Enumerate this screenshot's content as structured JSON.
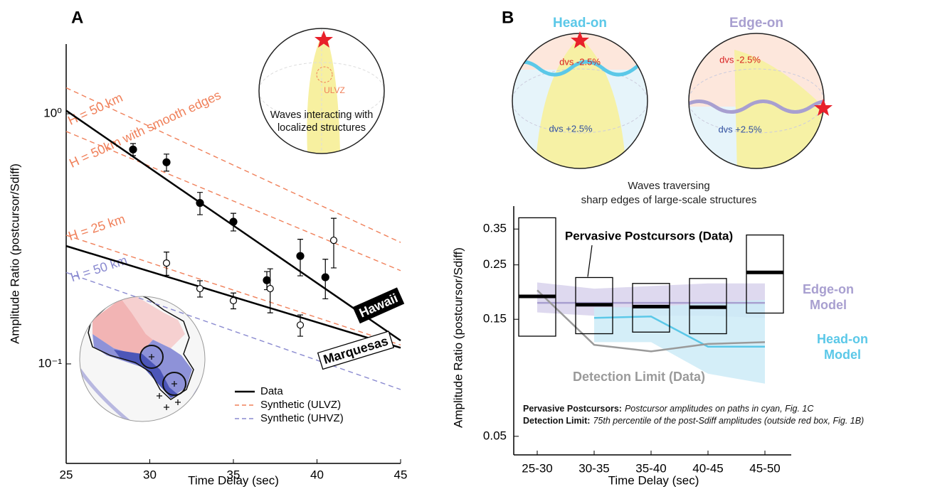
{
  "chart_data": [
    {
      "type": "scatter",
      "panel_label": "A",
      "xlabel": "Time Delay (sec)",
      "ylabel": "Amplitude Ratio (postcursor/Sdiff)",
      "xlim": [
        25,
        45
      ],
      "ylim": [
        0.04,
        1.9
      ],
      "log_y": true,
      "xticks": [
        25,
        30,
        35,
        40,
        45
      ],
      "yticks": [
        {
          "value": 1,
          "label": "10⁰"
        },
        {
          "value": 0.1,
          "label": "10⁻¹"
        }
      ],
      "series": [
        {
          "name": "Hawaii",
          "color": "#000000",
          "marker": "filled",
          "x": [
            29,
            31,
            33,
            35,
            37,
            39,
            40.5
          ],
          "values": [
            0.72,
            0.64,
            0.44,
            0.37,
            0.216,
            0.27,
            0.222
          ],
          "errors": [
            0.04,
            0.05,
            0.045,
            0.03,
            0.018,
            0.045,
            0.04
          ],
          "fit_values": [
            1.03,
            0.124
          ]
        },
        {
          "name": "Marquesas",
          "color": "#000000",
          "marker": "open",
          "x": [
            31,
            33,
            35,
            37.2,
            39,
            41
          ],
          "values": [
            0.253,
            0.2,
            0.179,
            0.2,
            0.143,
            0.312
          ],
          "errors": [
            0.027,
            0.015,
            0.013,
            0.04,
            0.014,
            0.07
          ],
          "fit_values": [
            0.296,
            0.116
          ]
        }
      ],
      "fit_x": [
        25,
        45
      ],
      "model_lines": [
        {
          "label": "H = 50 km",
          "color": "#f0805a",
          "values": [
            1.27,
            0.306
          ]
        },
        {
          "label": "H = 50km with smooth edges",
          "color": "#f0805a",
          "values": [
            0.85,
            0.236
          ]
        },
        {
          "label": "H = 25 km",
          "color": "#f0805a",
          "values": [
            0.327,
            0.119
          ]
        },
        {
          "label": "H = 50 km",
          "color": "#8a8ad0",
          "values": [
            0.232,
            0.079
          ]
        }
      ],
      "legend": {
        "position": "lower right",
        "entries": [
          {
            "name": "Data",
            "color": "#000000",
            "dashed": false
          },
          {
            "name": "Synthetic (ULVZ)",
            "color": "#f0805a",
            "dashed": true
          },
          {
            "name": "Synthetic (UHVZ)",
            "color": "#8a8ad0",
            "dashed": true
          }
        ]
      },
      "inset": {
        "label": "ULVZ",
        "caption": "Waves interacting with localized structures"
      }
    },
    {
      "type": "box",
      "panel_label": "B",
      "xlabel": "Time Delay (sec)",
      "ylabel": "Amplitude Ratio (postcursor/Sdiff)",
      "categories": [
        "25-30",
        "30-35",
        "35-40",
        "40-45",
        "45-50"
      ],
      "ylim": [
        0.042,
        0.434
      ],
      "log_y": true,
      "yticks": [
        0.05,
        0.15,
        0.25,
        0.35
      ],
      "boxes": {
        "name": "Pervasive Postcursors (Data)",
        "color": "#000000",
        "low": [
          0.128,
          0.131,
          0.133,
          0.131,
          0.159
        ],
        "high": [
          0.389,
          0.222,
          0.21,
          0.22,
          0.331
        ],
        "median": [
          0.186,
          0.172,
          0.169,
          0.168,
          0.233
        ]
      },
      "series": [
        {
          "name": "Edge-on Model",
          "color": "#a89fd0",
          "band_color": "#d8d2ec",
          "values": [
            0.175,
            0.175,
            0.175,
            0.175,
            0.175
          ],
          "band_low": [
            0.16,
            0.155,
            0.155,
            0.155,
            0.152
          ],
          "band_high": [
            0.212,
            0.2,
            0.205,
            0.21,
            0.21
          ]
        },
        {
          "name": "Head-on Model",
          "color": "#5bc8e8",
          "band_color": "#cdebf7",
          "values": [
            null,
            0.152,
            0.154,
            0.116,
            0.116
          ],
          "band_low": [
            null,
            0.121,
            0.121,
            0.09,
            0.082
          ],
          "band_high": [
            null,
            0.168,
            0.168,
            0.175,
            0.18
          ]
        },
        {
          "name": "Detection Limit (Data)",
          "color": "#9a9a9a",
          "values": [
            0.197,
            0.118,
            0.111,
            0.119,
            0.121
          ]
        }
      ],
      "notes": [
        {
          "term": "Pervasive Postcursors:",
          "text": "Postcursor amplitudes on paths in cyan, Fig. 1C"
        },
        {
          "term": "Detection Limit:",
          "text": "75th percentile of the post-Sdiff amplitudes (outside red box, Fig. 1B)"
        }
      ],
      "diagrams": [
        {
          "title": "Head-on",
          "color": "#5bc8e8",
          "upper": "dvs -2.5%",
          "lower": "dvs +2.5%"
        },
        {
          "title": "Edge-on",
          "color": "#a89fd0",
          "upper": "dvs -2.5%",
          "lower": "dvs +2.5%"
        }
      ],
      "diagram_caption": [
        "Waves traversing",
        "sharp edges of large-scale structures"
      ]
    }
  ]
}
